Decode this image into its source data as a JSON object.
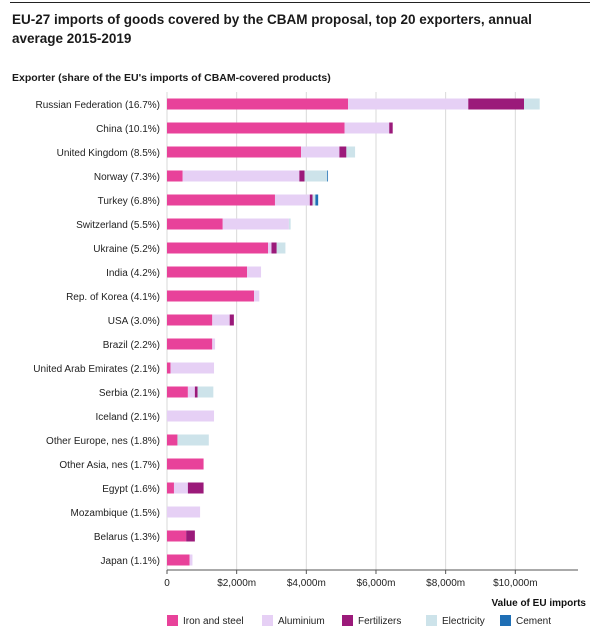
{
  "header": {
    "title": "EU-27 imports of goods covered by the CBAM proposal, top 20 exporters, annual average 2015-2019",
    "y_caption": "Exporter (share of the EU's imports of CBAM-covered products)"
  },
  "chart_data": {
    "type": "bar",
    "orientation": "horizontal",
    "stacked": true,
    "xlabel": "Value of EU imports",
    "xlim": [
      0,
      11800
    ],
    "x_ticks": [
      0,
      2000,
      4000,
      6000,
      8000,
      10000
    ],
    "x_tick_labels": [
      "0",
      "$2,000m",
      "$4,000m",
      "$6,000m",
      "$8,000m",
      "$10,000m"
    ],
    "grid": true,
    "legend_position": "bottom",
    "categories": [
      "Russian Federation (16.7%)",
      "China (10.1%)",
      "United Kingdom (8.5%)",
      "Norway (7.3%)",
      "Turkey (6.8%)",
      "Switzerland (5.5%)",
      "Ukraine (5.2%)",
      "India (4.2%)",
      "Rep. of Korea (4.1%)",
      "USA (3.0%)",
      "Brazil (2.2%)",
      "United Arab Emirates (2.1%)",
      "Serbia (2.1%)",
      "Iceland (2.1%)",
      "Other Europe, nes (1.8%)",
      "Other Asia, nes (1.7%)",
      "Egypt (1.6%)",
      "Mozambique (1.5%)",
      "Belarus (1.3%)",
      "Japan (1.1%)"
    ],
    "series": [
      {
        "name": "Iron and steel",
        "color": "#e8429a",
        "values": [
          5200,
          5100,
          3850,
          450,
          3100,
          1600,
          2900,
          2300,
          2500,
          1300,
          1300,
          100,
          600,
          0,
          300,
          1050,
          200,
          0,
          550,
          650
        ]
      },
      {
        "name": "Aluminium",
        "color": "#e6d0f5",
        "values": [
          3450,
          1280,
          1100,
          3350,
          1000,
          1900,
          100,
          400,
          150,
          500,
          80,
          1250,
          200,
          1350,
          0,
          0,
          400,
          950,
          0,
          80
        ]
      },
      {
        "name": "Fertilizers",
        "color": "#9b1a7a",
        "values": [
          1600,
          100,
          200,
          150,
          80,
          0,
          150,
          0,
          0,
          120,
          0,
          0,
          80,
          0,
          0,
          0,
          450,
          0,
          250,
          0
        ]
      },
      {
        "name": "Electricity",
        "color": "#cde3ea",
        "values": [
          450,
          0,
          250,
          650,
          80,
          50,
          250,
          0,
          0,
          0,
          0,
          0,
          450,
          0,
          900,
          0,
          0,
          0,
          0,
          0
        ]
      },
      {
        "name": "Cement",
        "color": "#1f6fb5",
        "values": [
          0,
          0,
          0,
          20,
          80,
          0,
          0,
          0,
          0,
          0,
          0,
          0,
          0,
          0,
          0,
          0,
          0,
          0,
          0,
          0
        ]
      }
    ]
  }
}
